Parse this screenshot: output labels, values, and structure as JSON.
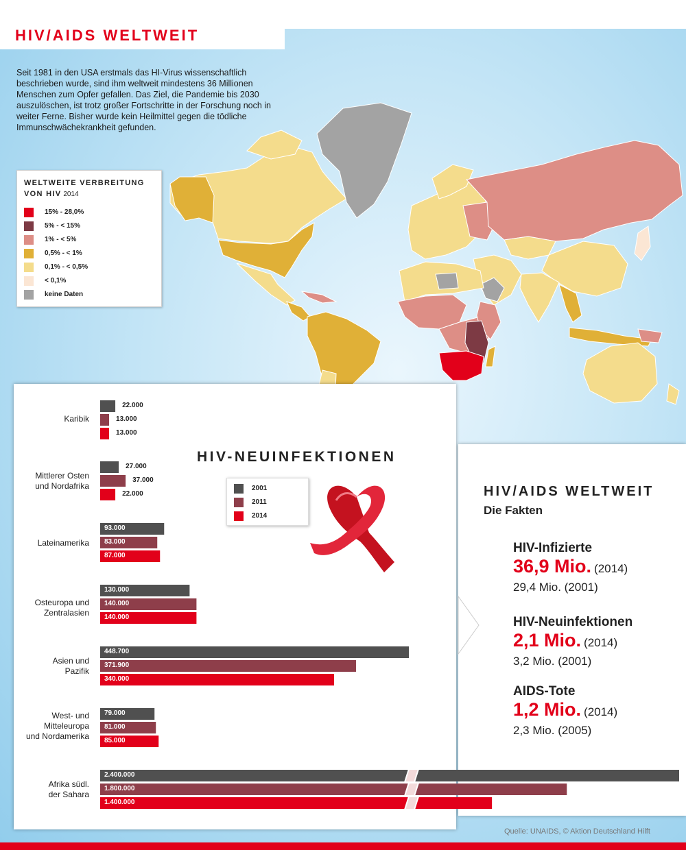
{
  "header": {
    "title": "HIV/AIDS WELTWEIT",
    "intro": "Seit 1981 in den USA erstmals das HI-Virus wissenschaftlich beschrieben wurde, sind ihm weltweit mindestens 36 Millionen Menschen zum Opfer gefallen. Das Ziel, die Pandemie bis 2030 auszulöschen, ist trotz großer Fortschritte in der Forschung noch in weiter Ferne. Bisher wurde kein Heilmittel gegen die tödliche Immunschwächekrankheit gefunden."
  },
  "map_legend": {
    "title_line1": "WELTWEITE VERBREITUNG",
    "title_line2": "VON HIV",
    "year": "2014",
    "items": [
      {
        "label": "15%   - 28,0%",
        "color": "#e2001a"
      },
      {
        "label": "5%    - < 15%",
        "color": "#7d3a44"
      },
      {
        "label": "1%     - < 5%",
        "color": "#dd8e86"
      },
      {
        "label": "0,5% - < 1%",
        "color": "#e0b037"
      },
      {
        "label": "0,1%  - < 0,5%",
        "color": "#f4dc8c"
      },
      {
        "label": "< 0,1%",
        "color": "#fbe6d4"
      },
      {
        "label": "keine Daten",
        "color": "#a3a3a3"
      }
    ]
  },
  "chart_data": {
    "type": "bar",
    "orientation": "horizontal",
    "title": "HIV-NEUINFEKTIONEN",
    "categories": [
      "Karibik",
      "Mittlerer Osten und Nordafrika",
      "Lateinamerika",
      "Osteuropa und Zentralasien",
      "Asien und Pazifik",
      "West- und Mitteleuropa und Nordamerika",
      "Afrika südl. der Sahara"
    ],
    "category_labels": [
      [
        "Karibik"
      ],
      [
        "Mittlerer Osten",
        "und Nordafrika"
      ],
      [
        "Lateinamerika"
      ],
      [
        "Osteuropa und",
        "Zentralasien"
      ],
      [
        "Asien und",
        "Pazifik"
      ],
      [
        "West- und",
        "Mitteleuropa",
        "und Nordamerika"
      ],
      [
        "Afrika südl.",
        "der Sahara"
      ]
    ],
    "series": [
      {
        "name": "2001",
        "color": "#505050",
        "values": [
          22000,
          27000,
          93000,
          130000,
          448700,
          79000,
          2400000
        ]
      },
      {
        "name": "2011",
        "color": "#8e3e4a",
        "values": [
          13000,
          37000,
          83000,
          140000,
          371900,
          81000,
          1800000
        ]
      },
      {
        "name": "2014",
        "color": "#e2001a",
        "values": [
          13000,
          22000,
          87000,
          140000,
          340000,
          85000,
          1400000
        ]
      }
    ],
    "value_labels": [
      [
        "22.000",
        "13.000",
        "13.000"
      ],
      [
        "27.000",
        "37.000",
        "22.000"
      ],
      [
        "93.000",
        "83.000",
        "87.000"
      ],
      [
        "130.000",
        "140.000",
        "140.000"
      ],
      [
        "448.700",
        "371.900",
        "340.000"
      ],
      [
        "79.000",
        "81.000",
        "85.000"
      ],
      [
        "2.400.000",
        "1.800.000",
        "1.400.000"
      ]
    ],
    "axis_break": true,
    "legend_position": "center"
  },
  "facts": {
    "title": "HIV/AIDS WELTWEIT",
    "subtitle": "Die Fakten",
    "items": [
      {
        "label": "HIV-Infizierte",
        "value": "36,9 Mio.",
        "year": "(2014)",
        "previous": "29,4 Mio. (2001)"
      },
      {
        "label": "HIV-Neuinfektionen",
        "value": "2,1 Mio.",
        "year": "(2014)",
        "previous": "3,2 Mio. (2001)"
      },
      {
        "label": "AIDS-Tote",
        "value": "1,2 Mio.",
        "year": "(2014)",
        "previous": "2,3 Mio. (2005)"
      }
    ]
  },
  "source": "Quelle: UNAIDS,  © Aktion Deutschland Hilft",
  "colors": {
    "accent": "#e2001a"
  }
}
